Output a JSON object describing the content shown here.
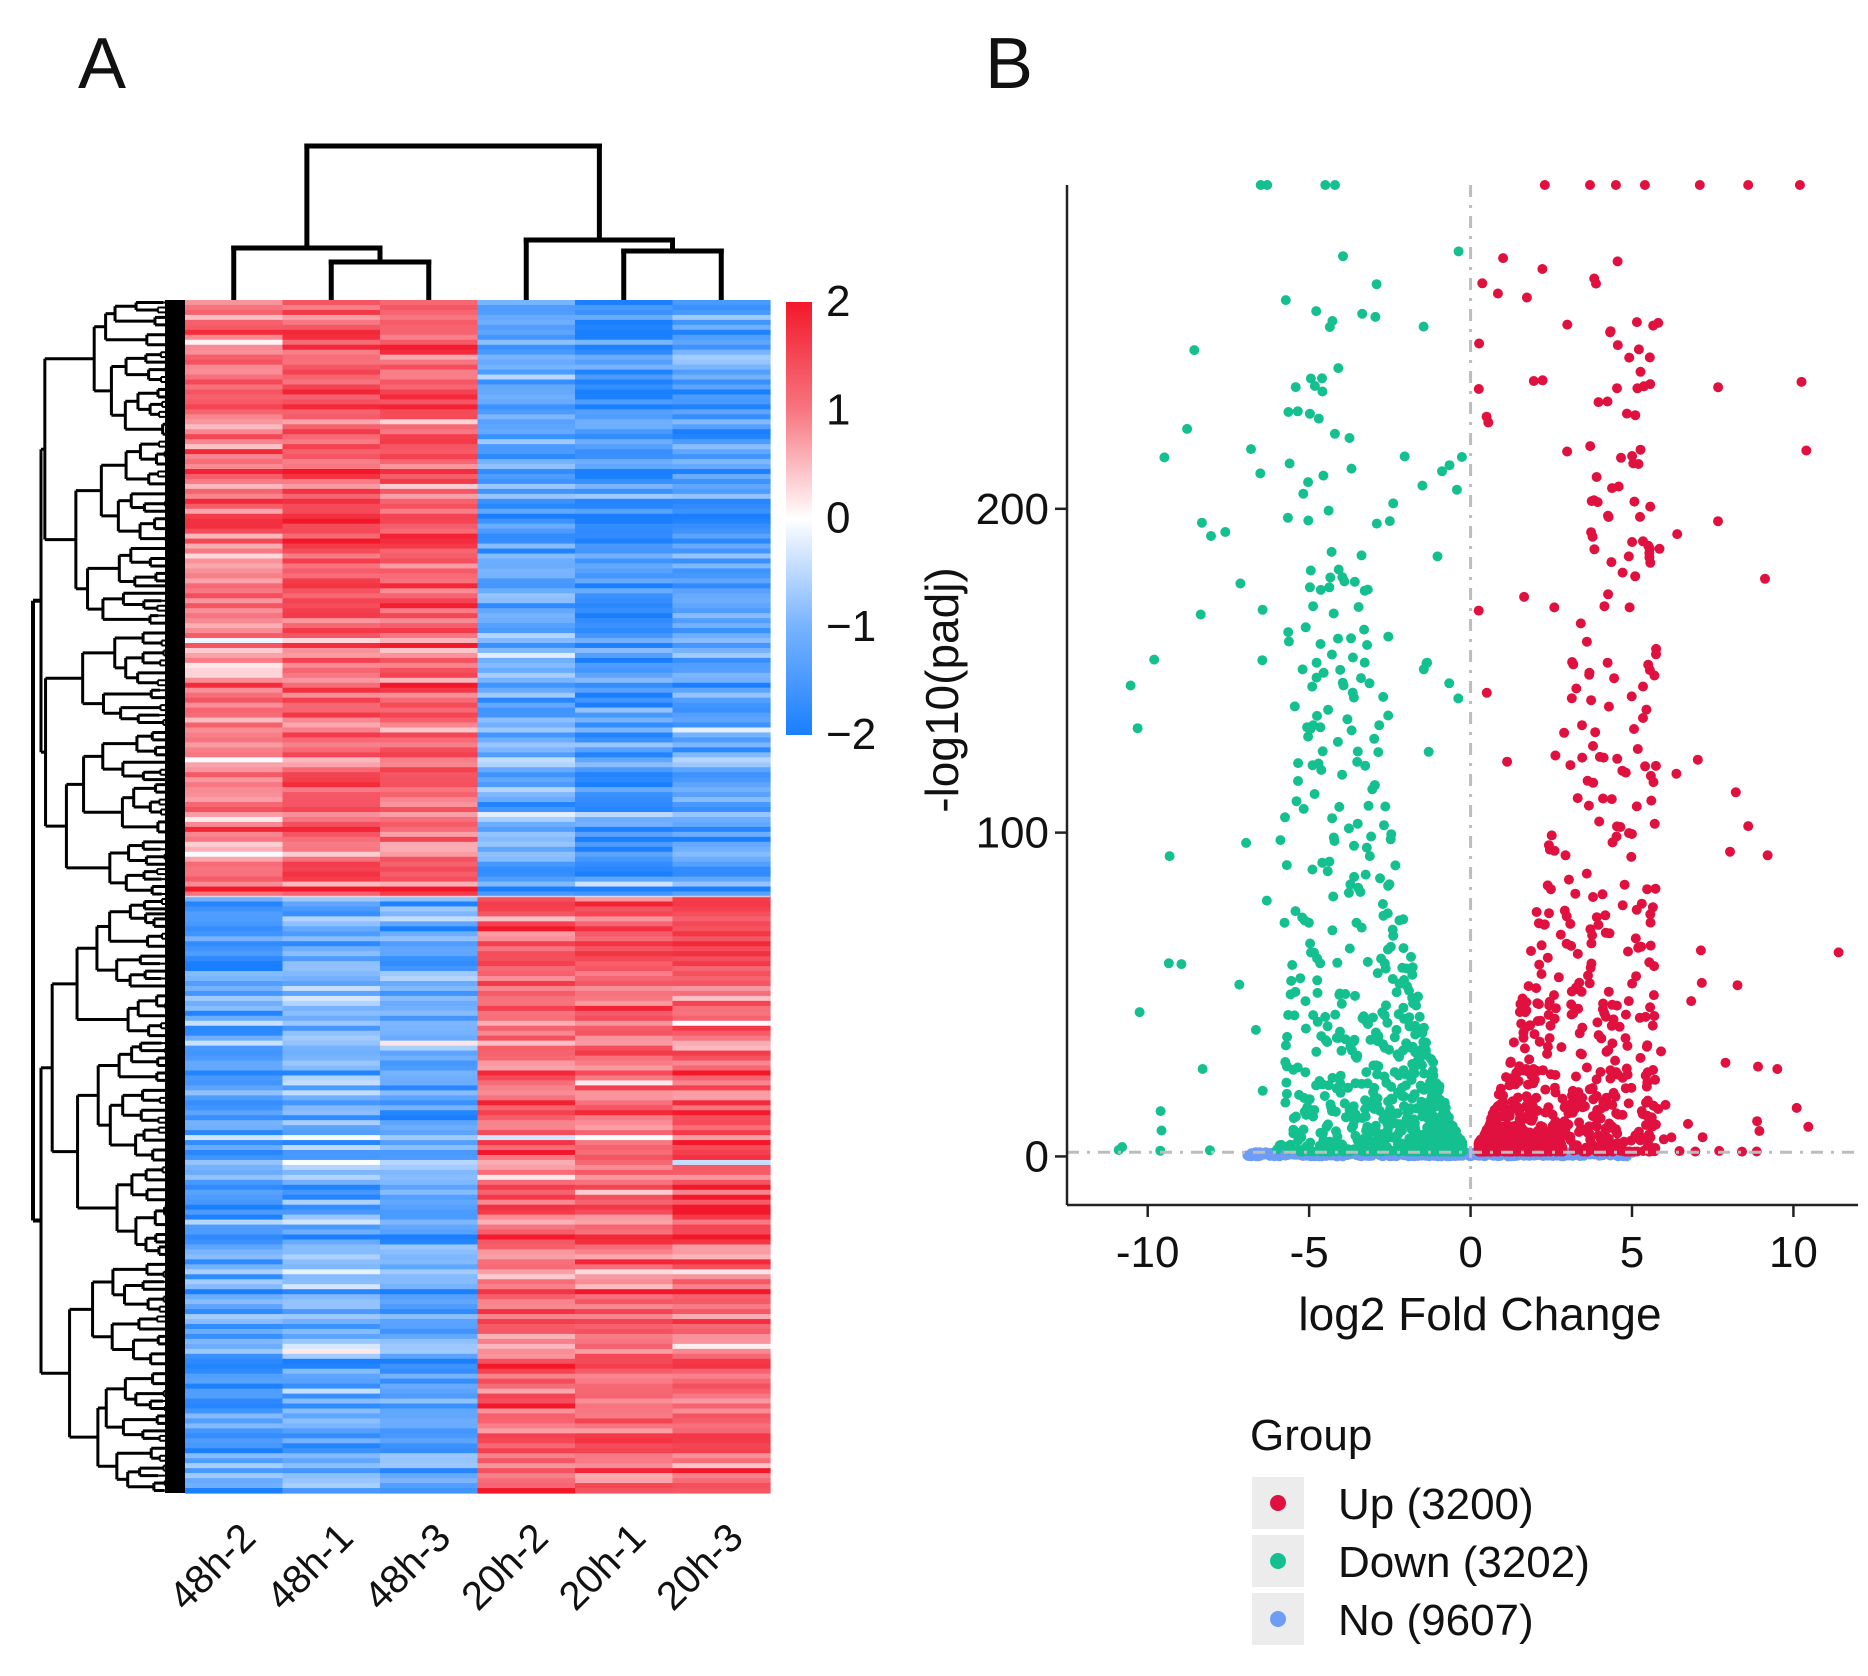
{
  "panels": {
    "a_label": "A",
    "b_label": "B"
  },
  "colors": {
    "heat_high": "#f2182a",
    "heat_mid": "#ffffff",
    "heat_low": "#1a7fff",
    "up": "#e0103f",
    "down": "#14c08f",
    "no": "#6f9cf5"
  },
  "chart_data": [
    {
      "type": "heatmap",
      "samples": [
        "48h-2",
        "48h-1",
        "48h-3",
        "20h-2",
        "20h-1",
        "20h-3"
      ],
      "clusters": [
        {
          "name": "upper block",
          "row_fraction": 0.5,
          "values": [
            0.9,
            1.25,
            1.2,
            -1.2,
            -1.5,
            -1.3
          ]
        },
        {
          "name": "lower block",
          "row_fraction": 0.5,
          "values": [
            -1.3,
            -1.0,
            -1.2,
            1.1,
            1.05,
            1.15
          ]
        }
      ],
      "colorbar": {
        "min": -2,
        "max": 2,
        "ticks": [
          "2",
          "1",
          "0",
          "−1",
          "−2"
        ]
      },
      "column_dendrogram": "((48h-2,(48h-1,48h-3)),(20h-2,(20h-1,20h-3)))"
    },
    {
      "type": "scatter",
      "title": "",
      "xlabel": "log2 Fold Change",
      "ylabel": "-log10(padj)",
      "xlim": [
        -12.5,
        12
      ],
      "ylim": [
        -15,
        300
      ],
      "xticks": [
        "-10",
        "-5",
        "0",
        "5",
        "10"
      ],
      "yticks": [
        "0",
        "100",
        "200"
      ],
      "reference_lines": {
        "x": 0,
        "y": 1.3
      },
      "legend": {
        "title": "Group",
        "position": "bottom-right",
        "entries": [
          "Up (3200)",
          "Down (3202)",
          "No (9607)"
        ]
      },
      "series": [
        {
          "name": "Up",
          "count": 3200,
          "color": "#e0103f",
          "x_range": [
            0.2,
            11.4
          ],
          "y_range": [
            1.3,
            300
          ]
        },
        {
          "name": "Down",
          "count": 3202,
          "color": "#14c08f",
          "x_range": [
            -11,
            -0.2
          ],
          "y_range": [
            1.3,
            300
          ]
        },
        {
          "name": "No",
          "count": 9607,
          "color": "#6f9cf5",
          "x_range": [
            -7,
            5
          ],
          "y_range": [
            0,
            1.3
          ]
        }
      ]
    }
  ]
}
